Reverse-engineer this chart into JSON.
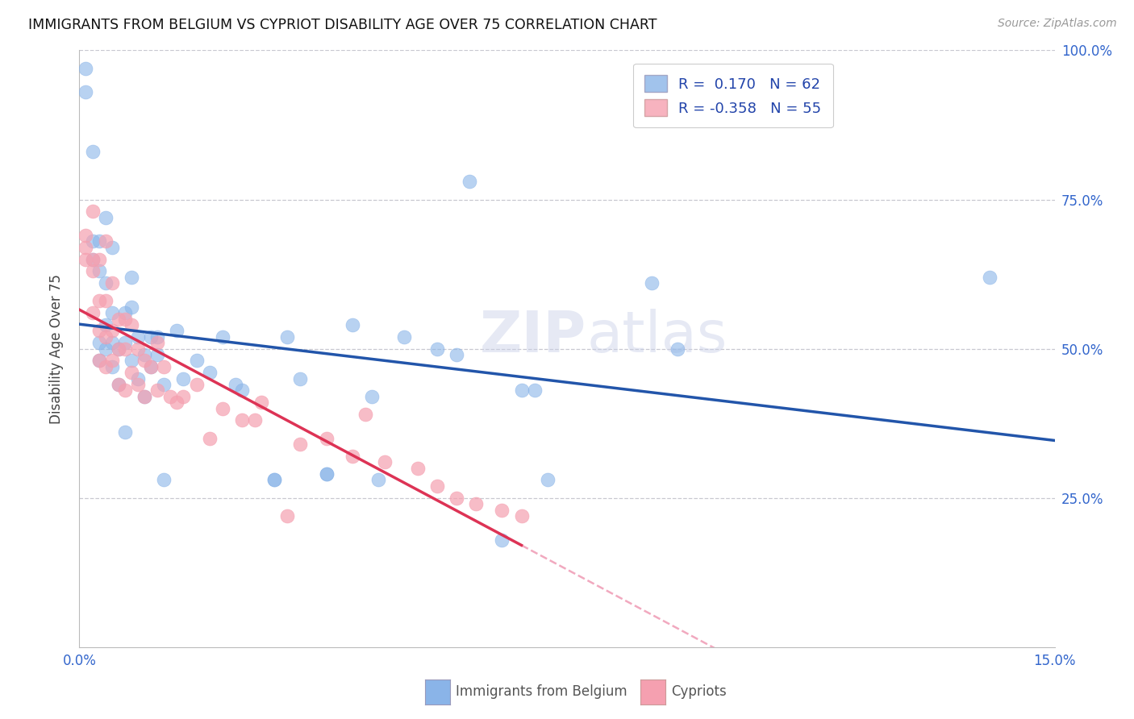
{
  "title": "IMMIGRANTS FROM BELGIUM VS CYPRIOT DISABILITY AGE OVER 75 CORRELATION CHART",
  "source": "Source: ZipAtlas.com",
  "ylabel_label": "Disability Age Over 75",
  "x_min": 0.0,
  "x_max": 0.15,
  "y_min": 0.0,
  "y_max": 1.0,
  "grid_color": "#c8c8d0",
  "background_color": "#ffffff",
  "belgium_color": "#8ab4e8",
  "cypriot_color": "#f5a0b0",
  "belgium_line_color": "#2255aa",
  "cypriot_line_color": "#dd3355",
  "cypriot_line_dashed_color": "#f0a0b8",
  "legend_R_belgium": "0.170",
  "legend_N_belgium": "62",
  "legend_R_cypriot": "-0.358",
  "legend_N_cypriot": "55",
  "watermark_zip": "ZIP",
  "watermark_atlas": "atlas",
  "belgium_x": [
    0.001,
    0.001,
    0.002,
    0.002,
    0.002,
    0.003,
    0.003,
    0.003,
    0.003,
    0.004,
    0.004,
    0.004,
    0.004,
    0.005,
    0.005,
    0.005,
    0.005,
    0.006,
    0.006,
    0.007,
    0.007,
    0.007,
    0.008,
    0.008,
    0.008,
    0.009,
    0.009,
    0.01,
    0.01,
    0.011,
    0.011,
    0.012,
    0.012,
    0.013,
    0.013,
    0.015,
    0.016,
    0.018,
    0.02,
    0.022,
    0.024,
    0.025,
    0.03,
    0.03,
    0.032,
    0.034,
    0.038,
    0.038,
    0.042,
    0.045,
    0.046,
    0.05,
    0.055,
    0.058,
    0.06,
    0.065,
    0.068,
    0.07,
    0.072,
    0.088,
    0.092,
    0.14
  ],
  "belgium_y": [
    0.97,
    0.93,
    0.68,
    0.65,
    0.83,
    0.68,
    0.63,
    0.51,
    0.48,
    0.72,
    0.61,
    0.54,
    0.5,
    0.67,
    0.56,
    0.51,
    0.47,
    0.5,
    0.44,
    0.56,
    0.51,
    0.36,
    0.62,
    0.57,
    0.48,
    0.52,
    0.45,
    0.49,
    0.42,
    0.52,
    0.47,
    0.52,
    0.49,
    0.44,
    0.28,
    0.53,
    0.45,
    0.48,
    0.46,
    0.52,
    0.44,
    0.43,
    0.28,
    0.28,
    0.52,
    0.45,
    0.29,
    0.29,
    0.54,
    0.42,
    0.28,
    0.52,
    0.5,
    0.49,
    0.78,
    0.18,
    0.43,
    0.43,
    0.28,
    0.61,
    0.5,
    0.62
  ],
  "cypriot_x": [
    0.001,
    0.001,
    0.001,
    0.002,
    0.002,
    0.002,
    0.002,
    0.003,
    0.003,
    0.003,
    0.003,
    0.004,
    0.004,
    0.004,
    0.004,
    0.005,
    0.005,
    0.005,
    0.006,
    0.006,
    0.006,
    0.007,
    0.007,
    0.007,
    0.008,
    0.008,
    0.009,
    0.009,
    0.01,
    0.01,
    0.011,
    0.012,
    0.012,
    0.013,
    0.014,
    0.015,
    0.016,
    0.018,
    0.02,
    0.022,
    0.025,
    0.027,
    0.028,
    0.032,
    0.034,
    0.038,
    0.042,
    0.044,
    0.047,
    0.052,
    0.055,
    0.058,
    0.061,
    0.065,
    0.068
  ],
  "cypriot_y": [
    0.69,
    0.67,
    0.65,
    0.73,
    0.65,
    0.63,
    0.56,
    0.65,
    0.58,
    0.53,
    0.48,
    0.68,
    0.58,
    0.52,
    0.47,
    0.61,
    0.53,
    0.48,
    0.55,
    0.5,
    0.44,
    0.55,
    0.5,
    0.43,
    0.54,
    0.46,
    0.5,
    0.44,
    0.48,
    0.42,
    0.47,
    0.51,
    0.43,
    0.47,
    0.42,
    0.41,
    0.42,
    0.44,
    0.35,
    0.4,
    0.38,
    0.38,
    0.41,
    0.22,
    0.34,
    0.35,
    0.32,
    0.39,
    0.31,
    0.3,
    0.27,
    0.25,
    0.24,
    0.23,
    0.22
  ]
}
